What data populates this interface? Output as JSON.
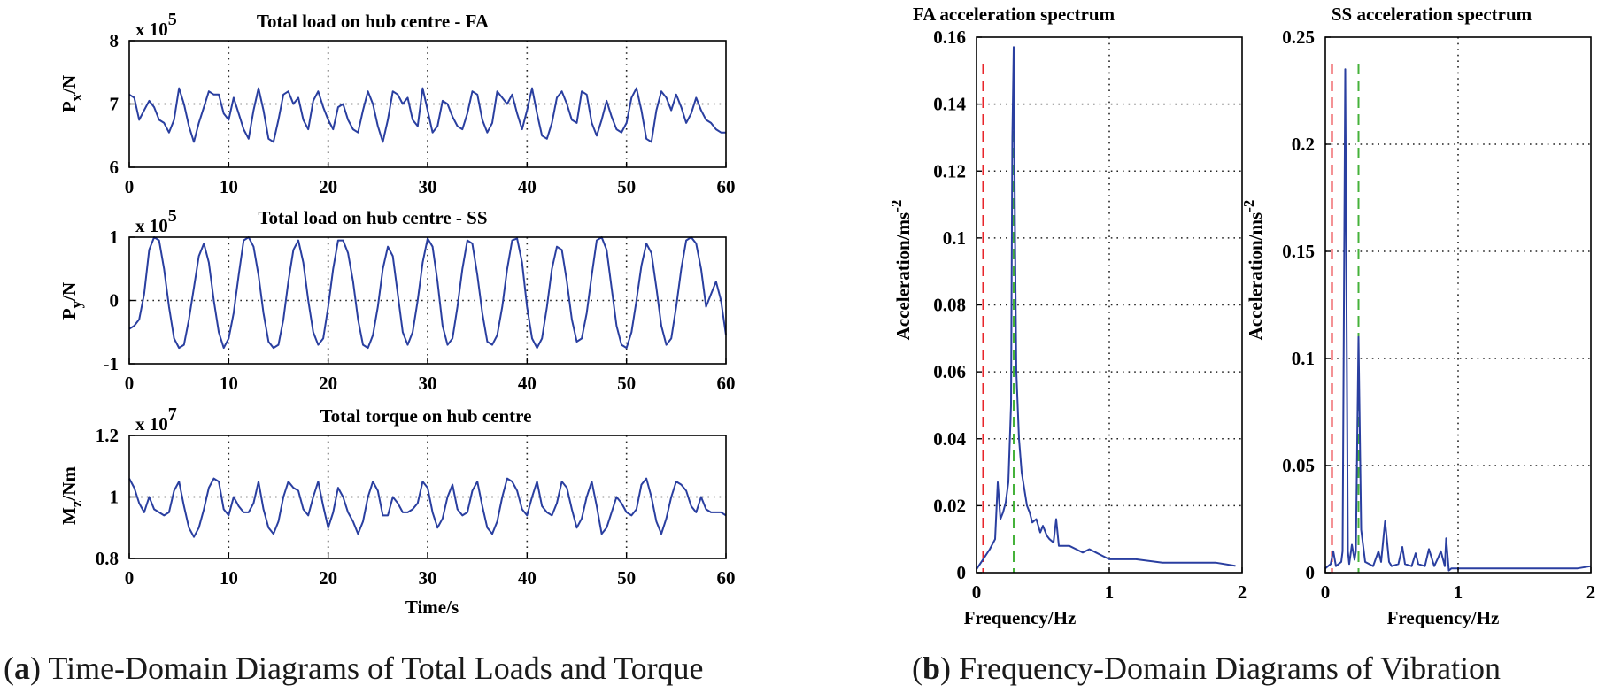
{
  "figure": {
    "caption_a": {
      "letter": "a",
      "text": " Time-Domain Diagrams of Total Loads and Torque"
    },
    "caption_b": {
      "letter": "b",
      "text": " Frequency-Domain Diagrams of Vibration"
    }
  },
  "colors": {
    "line": "#2a3fa0",
    "red_marker": "#e8262b",
    "green_marker": "#45b23a",
    "grid": "#222222"
  },
  "chart_data": [
    {
      "type": "line",
      "id": "px",
      "title": "Total load on hub centre - FA",
      "ylabel": "P",
      "ylabel_sub": "x",
      "ylabel_rest": "/N",
      "scale_base": "x 10",
      "scale_exp": "5",
      "xlabel": "",
      "xlim": [
        0,
        60
      ],
      "ylim": [
        6,
        8
      ],
      "xticks": [
        "0",
        "10",
        "20",
        "30",
        "40",
        "50",
        "60"
      ],
      "yticks": [
        "6",
        "7",
        "8"
      ],
      "ytick_values": [
        6,
        7,
        8
      ],
      "xtick_values": [
        0,
        10,
        20,
        30,
        40,
        50,
        60
      ],
      "x": [
        0,
        0.5,
        1,
        1.5,
        2,
        2.5,
        3,
        3.5,
        4,
        4.5,
        5,
        5.5,
        6,
        6.5,
        7,
        7.5,
        8,
        8.5,
        9,
        9.5,
        10,
        10.5,
        11,
        11.5,
        12,
        12.5,
        13,
        13.5,
        14,
        14.5,
        15,
        15.5,
        16,
        16.5,
        17,
        17.5,
        18,
        18.5,
        19,
        19.5,
        20,
        20.5,
        21,
        21.5,
        22,
        22.5,
        23,
        23.5,
        24,
        24.5,
        25,
        25.5,
        26,
        26.5,
        27,
        27.5,
        28,
        28.5,
        29,
        29.5,
        30,
        30.5,
        31,
        31.5,
        32,
        32.5,
        33,
        33.5,
        34,
        34.5,
        35,
        35.5,
        36,
        36.5,
        37,
        37.5,
        38,
        38.5,
        39,
        39.5,
        40,
        40.5,
        41,
        41.5,
        42,
        42.5,
        43,
        43.5,
        44,
        44.5,
        45,
        45.5,
        46,
        46.5,
        47,
        47.5,
        48,
        48.5,
        49,
        49.5,
        50,
        50.5,
        51,
        51.5,
        52,
        52.5,
        53,
        53.5,
        54,
        54.5,
        55,
        55.5,
        56,
        56.5,
        57,
        57.5,
        58,
        58.5,
        59,
        59.5,
        60
      ],
      "series": [
        {
          "name": "Px",
          "values": [
            7.15,
            7.1,
            6.75,
            6.9,
            7.05,
            6.95,
            6.75,
            6.7,
            6.55,
            6.75,
            7.25,
            7.0,
            6.65,
            6.4,
            6.7,
            6.95,
            7.2,
            7.15,
            7.15,
            6.85,
            6.75,
            7.1,
            6.85,
            6.6,
            6.45,
            6.9,
            7.25,
            6.9,
            6.45,
            6.4,
            6.75,
            7.15,
            7.2,
            7.0,
            7.1,
            6.75,
            6.6,
            7.05,
            7.2,
            6.95,
            6.75,
            6.6,
            6.95,
            7.0,
            6.75,
            6.6,
            6.55,
            6.9,
            7.2,
            7.0,
            6.65,
            6.4,
            6.75,
            7.2,
            7.15,
            7.0,
            7.1,
            6.75,
            6.65,
            7.25,
            6.9,
            6.55,
            6.65,
            7.05,
            7.0,
            6.8,
            6.65,
            6.6,
            6.85,
            7.2,
            7.15,
            6.75,
            6.55,
            6.7,
            7.2,
            7.1,
            7.0,
            7.15,
            6.85,
            6.6,
            6.9,
            7.25,
            6.85,
            6.5,
            6.45,
            6.7,
            7.1,
            7.2,
            7.0,
            6.75,
            6.7,
            7.2,
            7.15,
            6.7,
            6.5,
            6.75,
            7.05,
            6.8,
            6.6,
            6.55,
            6.7,
            7.1,
            7.25,
            6.9,
            6.45,
            6.4,
            6.9,
            7.2,
            7.1,
            6.9,
            7.15,
            6.95,
            6.7,
            6.85,
            7.1,
            6.9,
            6.75,
            6.7,
            6.6,
            6.55,
            6.55
          ]
        }
      ]
    },
    {
      "type": "line",
      "id": "py",
      "title": "Total load on hub centre - SS",
      "ylabel": "P",
      "ylabel_sub": "y",
      "ylabel_rest": "/N",
      "scale_base": "x 10",
      "scale_exp": "5",
      "xlabel": "",
      "xlim": [
        0,
        60
      ],
      "ylim": [
        -1,
        1
      ],
      "xticks": [
        "0",
        "10",
        "20",
        "30",
        "40",
        "50",
        "60"
      ],
      "yticks": [
        "-1",
        "0",
        "1"
      ],
      "ytick_values": [
        -1,
        0,
        1
      ],
      "xtick_values": [
        0,
        10,
        20,
        30,
        40,
        50,
        60
      ],
      "x": [
        0,
        0.5,
        1,
        1.5,
        2,
        2.5,
        3,
        3.5,
        4,
        4.5,
        5,
        5.5,
        6,
        6.5,
        7,
        7.5,
        8,
        8.5,
        9,
        9.5,
        10,
        10.5,
        11,
        11.5,
        12,
        12.5,
        13,
        13.5,
        14,
        14.5,
        15,
        15.5,
        16,
        16.5,
        17,
        17.5,
        18,
        18.5,
        19,
        19.5,
        20,
        20.5,
        21,
        21.5,
        22,
        22.5,
        23,
        23.5,
        24,
        24.5,
        25,
        25.5,
        26,
        26.5,
        27,
        27.5,
        28,
        28.5,
        29,
        29.5,
        30,
        30.5,
        31,
        31.5,
        32,
        32.5,
        33,
        33.5,
        34,
        34.5,
        35,
        35.5,
        36,
        36.5,
        37,
        37.5,
        38,
        38.5,
        39,
        39.5,
        40,
        40.5,
        41,
        41.5,
        42,
        42.5,
        43,
        43.5,
        44,
        44.5,
        45,
        45.5,
        46,
        46.5,
        47,
        47.5,
        48,
        48.5,
        49,
        49.5,
        50,
        50.5,
        51,
        51.5,
        52,
        52.5,
        53,
        53.5,
        54,
        54.5,
        55,
        55.5,
        56,
        56.5,
        57,
        57.5,
        58,
        58.5,
        59,
        59.5,
        60
      ],
      "series": [
        {
          "name": "Py",
          "values": [
            -0.45,
            -0.4,
            -0.3,
            0.1,
            0.8,
            1.0,
            0.95,
            0.5,
            -0.1,
            -0.6,
            -0.75,
            -0.7,
            -0.3,
            0.2,
            0.7,
            0.9,
            0.6,
            0.0,
            -0.5,
            -0.75,
            -0.6,
            -0.2,
            0.4,
            0.95,
            1.0,
            0.85,
            0.4,
            -0.2,
            -0.65,
            -0.75,
            -0.7,
            -0.3,
            0.3,
            0.8,
            0.95,
            0.6,
            0.0,
            -0.5,
            -0.7,
            -0.6,
            -0.1,
            0.5,
            0.95,
            0.95,
            0.75,
            0.3,
            -0.3,
            -0.7,
            -0.75,
            -0.55,
            -0.1,
            0.5,
            0.85,
            0.7,
            0.1,
            -0.5,
            -0.7,
            -0.5,
            0.0,
            0.6,
            0.98,
            0.85,
            0.3,
            -0.4,
            -0.7,
            -0.6,
            -0.1,
            0.5,
            0.95,
            0.9,
            0.4,
            -0.2,
            -0.65,
            -0.7,
            -0.55,
            -0.1,
            0.5,
            0.95,
            0.98,
            0.6,
            -0.1,
            -0.6,
            -0.75,
            -0.6,
            -0.1,
            0.5,
            0.85,
            0.8,
            0.3,
            -0.3,
            -0.65,
            -0.6,
            -0.2,
            0.4,
            0.95,
            1.0,
            0.8,
            0.2,
            -0.4,
            -0.7,
            -0.75,
            -0.5,
            0.0,
            0.55,
            0.9,
            0.75,
            0.2,
            -0.4,
            -0.7,
            -0.6,
            -0.1,
            0.5,
            0.95,
            1.0,
            0.9,
            0.5,
            -0.1,
            0.1,
            0.3,
            0.0,
            -0.55
          ]
        }
      ]
    },
    {
      "type": "line",
      "id": "mz",
      "title": "Total torque on hub centre",
      "ylabel": "M",
      "ylabel_sub": "z",
      "ylabel_rest": "/Nm",
      "scale_base": "x 10",
      "scale_exp": "7",
      "xlabel": "Time/s",
      "xlim": [
        0,
        60
      ],
      "ylim": [
        0.8,
        1.2
      ],
      "xticks": [
        "0",
        "10",
        "20",
        "30",
        "40",
        "50",
        "60"
      ],
      "yticks": [
        "0.8",
        "1",
        "1.2"
      ],
      "ytick_values": [
        0.8,
        1.0,
        1.2
      ],
      "xtick_values": [
        0,
        10,
        20,
        30,
        40,
        50,
        60
      ],
      "x": [
        0,
        0.5,
        1,
        1.5,
        2,
        2.5,
        3,
        3.5,
        4,
        4.5,
        5,
        5.5,
        6,
        6.5,
        7,
        7.5,
        8,
        8.5,
        9,
        9.5,
        10,
        10.5,
        11,
        11.5,
        12,
        12.5,
        13,
        13.5,
        14,
        14.5,
        15,
        15.5,
        16,
        16.5,
        17,
        17.5,
        18,
        18.5,
        19,
        19.5,
        20,
        20.5,
        21,
        21.5,
        22,
        22.5,
        23,
        23.5,
        24,
        24.5,
        25,
        25.5,
        26,
        26.5,
        27,
        27.5,
        28,
        28.5,
        29,
        29.5,
        30,
        30.5,
        31,
        31.5,
        32,
        32.5,
        33,
        33.5,
        34,
        34.5,
        35,
        35.5,
        36,
        36.5,
        37,
        37.5,
        38,
        38.5,
        39,
        39.5,
        40,
        40.5,
        41,
        41.5,
        42,
        42.5,
        43,
        43.5,
        44,
        44.5,
        45,
        45.5,
        46,
        46.5,
        47,
        47.5,
        48,
        48.5,
        49,
        49.5,
        50,
        50.5,
        51,
        51.5,
        52,
        52.5,
        53,
        53.5,
        54,
        54.5,
        55,
        55.5,
        56,
        56.5,
        57,
        57.5,
        58,
        58.5,
        59,
        59.5,
        60
      ],
      "series": [
        {
          "name": "Mz",
          "values": [
            1.06,
            1.03,
            0.98,
            0.95,
            1.0,
            0.96,
            0.95,
            0.94,
            0.95,
            1.02,
            1.05,
            0.97,
            0.9,
            0.87,
            0.9,
            0.96,
            1.03,
            1.06,
            1.05,
            0.96,
            0.94,
            1.0,
            0.97,
            0.95,
            0.95,
            0.98,
            1.05,
            0.96,
            0.9,
            0.88,
            0.92,
            1.0,
            1.05,
            1.03,
            1.02,
            0.96,
            0.94,
            1.0,
            1.05,
            0.97,
            0.9,
            0.95,
            1.03,
            1.0,
            0.95,
            0.92,
            0.88,
            0.92,
            1.0,
            1.05,
            1.02,
            0.94,
            0.94,
            1.0,
            0.98,
            0.95,
            0.95,
            0.96,
            0.98,
            1.05,
            1.03,
            0.95,
            0.9,
            0.93,
            1.0,
            1.04,
            0.96,
            0.94,
            0.95,
            1.02,
            1.05,
            0.97,
            0.9,
            0.88,
            0.92,
            1.0,
            1.06,
            1.05,
            1.02,
            0.96,
            0.94,
            1.0,
            1.05,
            0.97,
            0.95,
            0.94,
            0.98,
            1.05,
            1.03,
            0.96,
            0.9,
            0.93,
            1.0,
            1.05,
            0.97,
            0.88,
            0.9,
            0.95,
            1.0,
            0.98,
            0.95,
            0.94,
            0.96,
            1.04,
            1.06,
            1.0,
            0.92,
            0.88,
            0.93,
            1.0,
            1.05,
            1.04,
            1.02,
            0.97,
            0.95,
            1.0,
            0.96,
            0.95,
            0.95,
            0.95,
            0.94
          ]
        }
      ]
    },
    {
      "type": "line",
      "id": "fa",
      "title": "FA acceleration spectrum",
      "ylabel": "Acceleration/ms",
      "ylabel_sup": "-2",
      "xlabel": "Frequency/Hz",
      "xlim": [
        0,
        2
      ],
      "ylim": [
        0,
        0.16
      ],
      "xticks": [
        "0",
        "1",
        "2"
      ],
      "xtick_values": [
        0,
        1,
        2
      ],
      "yticks": [
        "0",
        "0.02",
        "0.04",
        "0.06",
        "0.08",
        "0.1",
        "0.12",
        "0.14",
        "0.16"
      ],
      "ytick_values": [
        0,
        0.02,
        0.04,
        0.06,
        0.08,
        0.1,
        0.12,
        0.14,
        0.16
      ],
      "red_marker_x": 0.05,
      "green_marker_x": 0.28,
      "x": [
        0,
        0.05,
        0.1,
        0.14,
        0.16,
        0.18,
        0.2,
        0.22,
        0.24,
        0.26,
        0.27,
        0.28,
        0.29,
        0.3,
        0.32,
        0.34,
        0.36,
        0.38,
        0.4,
        0.42,
        0.45,
        0.48,
        0.5,
        0.53,
        0.55,
        0.58,
        0.6,
        0.62,
        0.65,
        0.7,
        0.75,
        0.8,
        0.85,
        0.9,
        0.95,
        1.0,
        1.2,
        1.4,
        1.6,
        1.8,
        1.95
      ],
      "series": [
        {
          "name": "FA",
          "values": [
            0.001,
            0.004,
            0.007,
            0.01,
            0.027,
            0.016,
            0.018,
            0.021,
            0.027,
            0.05,
            0.13,
            0.157,
            0.1,
            0.06,
            0.04,
            0.03,
            0.025,
            0.02,
            0.018,
            0.015,
            0.016,
            0.012,
            0.014,
            0.011,
            0.01,
            0.009,
            0.016,
            0.008,
            0.008,
            0.008,
            0.007,
            0.006,
            0.007,
            0.006,
            0.005,
            0.004,
            0.004,
            0.003,
            0.003,
            0.003,
            0.002
          ]
        }
      ]
    },
    {
      "type": "line",
      "id": "ss",
      "title": "SS acceleration spectrum",
      "ylabel": "Acceleration/ms",
      "ylabel_sup": "-2",
      "xlabel": "Frequency/Hz",
      "xlim": [
        0,
        2
      ],
      "ylim": [
        0,
        0.25
      ],
      "xticks": [
        "0",
        "1",
        "2"
      ],
      "xtick_values": [
        0,
        1,
        2
      ],
      "yticks": [
        "0",
        "0.05",
        "0.1",
        "0.15",
        "0.2",
        "0.25"
      ],
      "ytick_values": [
        0,
        0.05,
        0.1,
        0.15,
        0.2,
        0.25
      ],
      "red_marker_x": 0.05,
      "green_marker_x": 0.25,
      "x": [
        0,
        0.04,
        0.06,
        0.08,
        0.1,
        0.12,
        0.13,
        0.15,
        0.17,
        0.18,
        0.2,
        0.22,
        0.23,
        0.25,
        0.27,
        0.3,
        0.33,
        0.36,
        0.4,
        0.42,
        0.45,
        0.48,
        0.5,
        0.55,
        0.58,
        0.6,
        0.65,
        0.68,
        0.7,
        0.75,
        0.78,
        0.82,
        0.85,
        0.87,
        0.9,
        0.91,
        0.93,
        0.95,
        1.0,
        1.3,
        1.6,
        1.9,
        2.0
      ],
      "series": [
        {
          "name": "SS",
          "values": [
            0.002,
            0.004,
            0.01,
            0.003,
            0.004,
            0.005,
            0.01,
            0.235,
            0.01,
            0.004,
            0.013,
            0.006,
            0.01,
            0.11,
            0.02,
            0.005,
            0.004,
            0.003,
            0.01,
            0.005,
            0.024,
            0.005,
            0.003,
            0.004,
            0.012,
            0.004,
            0.003,
            0.009,
            0.004,
            0.003,
            0.011,
            0.003,
            0.007,
            0.01,
            0.003,
            0.016,
            0.001,
            0.002,
            0.002,
            0.002,
            0.002,
            0.002,
            0.003
          ]
        }
      ]
    }
  ]
}
